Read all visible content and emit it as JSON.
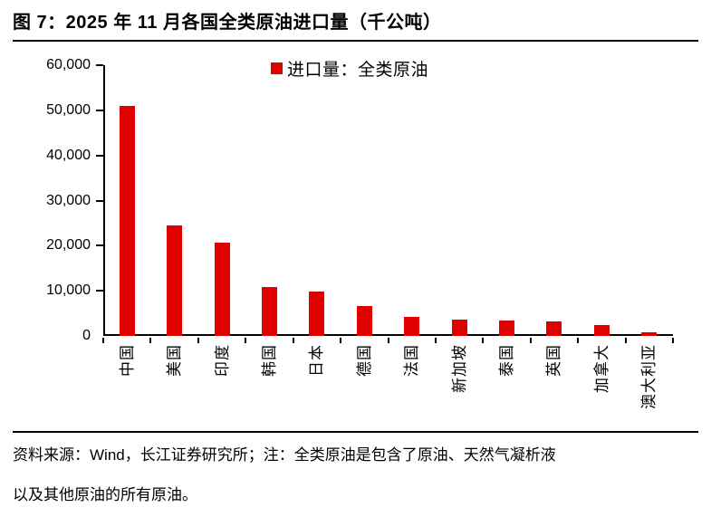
{
  "figure": {
    "title": "图 7：2025 年 11 月各国全类原油进口量（千公吨）"
  },
  "chart_data": {
    "type": "bar",
    "title": "图 7：2025 年 11 月各国全类原油进口量（千公吨）",
    "unit": "千公吨",
    "legend": "进口量：全类原油",
    "legend_position": "top-center",
    "categories": [
      "中国",
      "美国",
      "印度",
      "韩国",
      "日本",
      "德国",
      "法国",
      "新加坡",
      "泰国",
      "英国",
      "加拿大",
      "澳大利亚"
    ],
    "values": [
      51000,
      24400,
      20700,
      10800,
      9800,
      6600,
      4250,
      3700,
      3400,
      3250,
      2400,
      750
    ],
    "ylim": [
      0,
      60000
    ],
    "y_tick_labels": [
      "0",
      "10,000",
      "20,000",
      "30,000",
      "40,000",
      "50,000",
      "60,000"
    ],
    "grid": false,
    "bar_color": "#e00000"
  },
  "footer": {
    "lines": [
      "资料来源：Wind，长江证券研究所；注：全类原油是包含了原油、天然气凝析液",
      "以及其他原油的所有原油。"
    ]
  },
  "colors": {
    "bar": "#e00000",
    "text": "#000000",
    "rule": "#000000"
  }
}
